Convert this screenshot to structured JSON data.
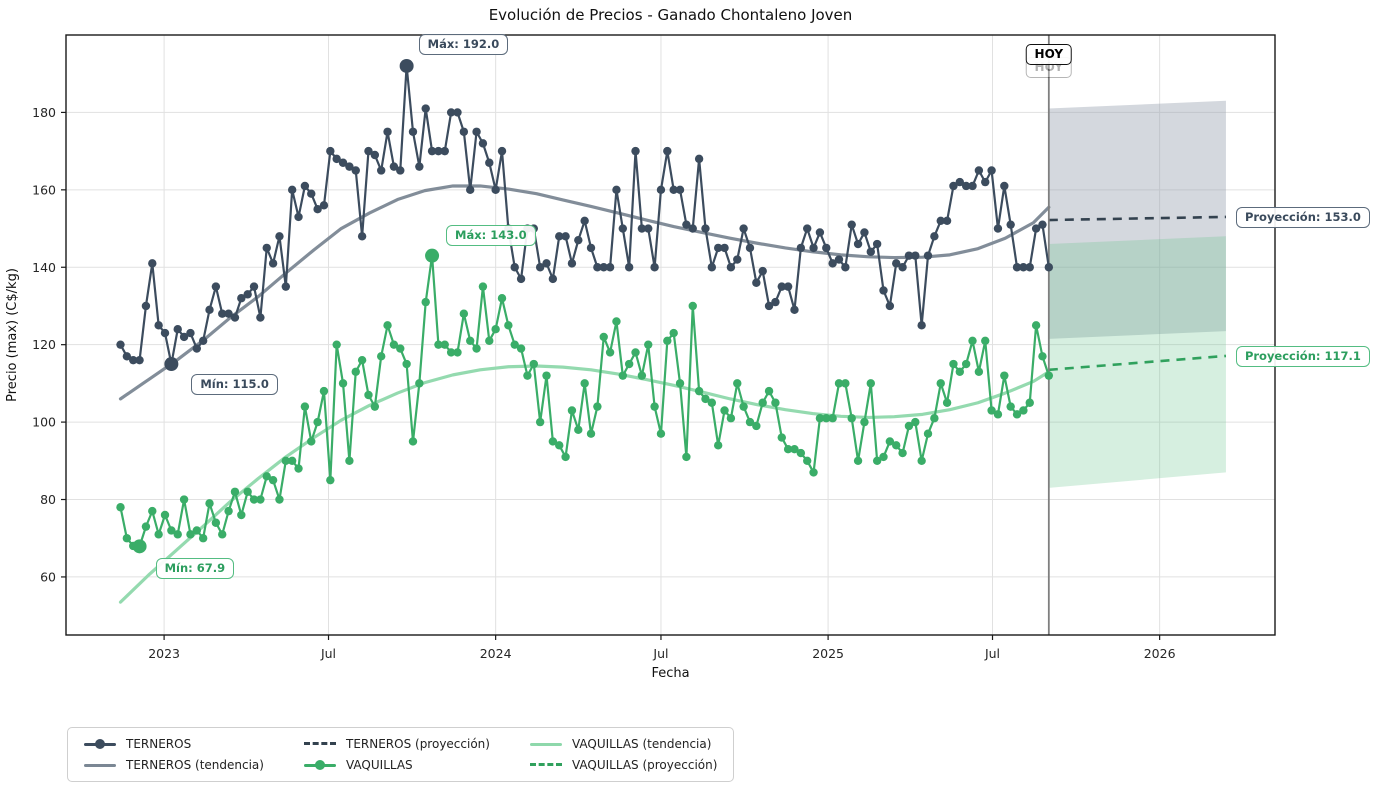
{
  "title": "Evolución de Precios - Ganado Chontaleno Joven",
  "axes": {
    "xlabel": "Fecha",
    "ylabel": "Precio (max) (C$/kg)",
    "yticks": [
      60,
      80,
      100,
      120,
      140,
      160,
      180
    ],
    "xticks": [
      {
        "date": "2023-01-01",
        "label": "2023"
      },
      {
        "date": "2023-07-01",
        "label": "Jul"
      },
      {
        "date": "2024-01-01",
        "label": "2024"
      },
      {
        "date": "2024-07-01",
        "label": "Jul"
      },
      {
        "date": "2025-01-01",
        "label": "2025"
      },
      {
        "date": "2025-07-01",
        "label": "Jul"
      },
      {
        "date": "2026-01-01",
        "label": "2026"
      }
    ]
  },
  "annotations": {
    "terneros_max_label": "Máx: 192.0",
    "terneros_min_label": "Mín: 115.0",
    "vaquillas_max_label": "Máx: 143.0",
    "vaquillas_min_label": "Mín: 67.9",
    "today_label": "HOY",
    "terneros_projection_label": "Proyección: 153.0",
    "vaquillas_projection_label": "Proyección: 117.1"
  },
  "colors": {
    "terneros": "#3c4c5e",
    "terneros_trend": "#7b8794",
    "terneros_projection": "#33424f",
    "terneros_band": "rgba(148,158,172,0.40)",
    "vaquillas": "#3aad68",
    "vaquillas_trend": "#8ed8ab",
    "vaquillas_projection": "#30a15d",
    "vaquillas_band": "rgba(90,190,130,0.25)",
    "today_line": "#7f7f7f",
    "grid": "#e1e1e1",
    "frame": "#1a1a1a"
  },
  "legend": [
    {
      "label": "TERNEROS",
      "type": "marker",
      "color": "#3c4c5e"
    },
    {
      "label": "TERNEROS (tendencia)",
      "type": "line",
      "color": "#7b8794"
    },
    {
      "label": "TERNEROS (proyección)",
      "type": "dash",
      "color": "#33424f"
    },
    {
      "label": "VAQUILLAS",
      "type": "marker",
      "color": "#3aad68"
    },
    {
      "label": "VAQUILLAS (tendencia)",
      "type": "line",
      "color": "#8ed8ab"
    },
    {
      "label": "VAQUILLAS (proyección)",
      "type": "dash",
      "color": "#30a15d"
    }
  ],
  "chart_data": {
    "type": "line",
    "xlim": [
      "2022-09-15",
      "2026-05-08"
    ],
    "ylim": [
      45,
      200
    ],
    "x_start": "2022-11-14",
    "x_step_days": 7,
    "today": "2025-09-01",
    "projection_end": "2026-03-15",
    "series": [
      {
        "name": "TERNEROS",
        "values": [
          120,
          117,
          116,
          116,
          130,
          141,
          125,
          123,
          115,
          124,
          122,
          123,
          119,
          121,
          129,
          135,
          128,
          128,
          127,
          132,
          133,
          135,
          127,
          145,
          141,
          148,
          135,
          160,
          153,
          161,
          159,
          155,
          156,
          170,
          168,
          167,
          166,
          165,
          148,
          170,
          169,
          165,
          175,
          166,
          165,
          192,
          175,
          166,
          181,
          170,
          170,
          170,
          180,
          180,
          175,
          160,
          175,
          172,
          167,
          160,
          170,
          150,
          140,
          137,
          150,
          150,
          140,
          141,
          137,
          148,
          148,
          141,
          147,
          152,
          145,
          140,
          140,
          140,
          160,
          150,
          140,
          170,
          150,
          150,
          140,
          160,
          170,
          160,
          160,
          151,
          150,
          168,
          150,
          140,
          145,
          145,
          140,
          142,
          150,
          145,
          136,
          139,
          130,
          131,
          135,
          135,
          129,
          145,
          150,
          145,
          149,
          145,
          141,
          142,
          140,
          151,
          146,
          149,
          144,
          146,
          134,
          130,
          141,
          140,
          143,
          143,
          125,
          143,
          148,
          152,
          152,
          161,
          162,
          161,
          161,
          165,
          162,
          165,
          150,
          161,
          151,
          140,
          140,
          140,
          150,
          151,
          140
        ],
        "max": {
          "value": 192.0,
          "date": "2023-09-25"
        },
        "min": {
          "value": 115.0,
          "date": "2023-01-09"
        }
      },
      {
        "name": "VAQUILLAS",
        "values": [
          78,
          70,
          68,
          67.9,
          73,
          77,
          71,
          76,
          72,
          71,
          80,
          71,
          72,
          70,
          79,
          74,
          71,
          77,
          82,
          76,
          82,
          80,
          80,
          86,
          85,
          80,
          90,
          90,
          88,
          104,
          95,
          100,
          108,
          85,
          120,
          110,
          90,
          113,
          116,
          107,
          104,
          117,
          125,
          120,
          119,
          115,
          95,
          110,
          131,
          143,
          120,
          120,
          118,
          118,
          128,
          121,
          119,
          135,
          121,
          124,
          132,
          125,
          120,
          119,
          112,
          115,
          100,
          112,
          95,
          94,
          91,
          103,
          98,
          110,
          97,
          104,
          122,
          118,
          126,
          112,
          115,
          118,
          112,
          120,
          104,
          97,
          121,
          123,
          110,
          91,
          130,
          108,
          106,
          105,
          94,
          103,
          101,
          110,
          104,
          100,
          99,
          105,
          108,
          105,
          96,
          93,
          93,
          92,
          90,
          87,
          101,
          101,
          101,
          110,
          110,
          101,
          90,
          100,
          110,
          90,
          91,
          95,
          94,
          92,
          99,
          100,
          90,
          97,
          101,
          110,
          105,
          115,
          113,
          115,
          121,
          113,
          121,
          103,
          102,
          112,
          104,
          102,
          103,
          105,
          125,
          117,
          112
        ],
        "max": {
          "value": 143.0,
          "date": "2023-10-23"
        },
        "min": {
          "value": 67.9,
          "date": "2022-12-05"
        }
      }
    ],
    "trends": [
      {
        "name": "TERNEROS (tendencia)",
        "points": [
          [
            "2022-11-14",
            106
          ],
          [
            "2022-12-15",
            111
          ],
          [
            "2023-01-15",
            116
          ],
          [
            "2023-02-15",
            121.5
          ],
          [
            "2023-03-15",
            127
          ],
          [
            "2023-04-15",
            132.5
          ],
          [
            "2023-05-15",
            138.5
          ],
          [
            "2023-06-15",
            144.5
          ],
          [
            "2023-07-15",
            150
          ],
          [
            "2023-08-15",
            154
          ],
          [
            "2023-09-15",
            157.5
          ],
          [
            "2023-10-15",
            159.8
          ],
          [
            "2023-11-15",
            161
          ],
          [
            "2023-12-15",
            161
          ],
          [
            "2024-01-15",
            160.2
          ],
          [
            "2024-02-15",
            159
          ],
          [
            "2024-03-15",
            157.4
          ],
          [
            "2024-04-15",
            155.7
          ],
          [
            "2024-05-15",
            154
          ],
          [
            "2024-06-15",
            152.2
          ],
          [
            "2024-07-15",
            150.5
          ],
          [
            "2024-08-15",
            149
          ],
          [
            "2024-09-15",
            147.5
          ],
          [
            "2024-10-15",
            146.2
          ],
          [
            "2024-11-15",
            145
          ],
          [
            "2024-12-15",
            144
          ],
          [
            "2025-01-15",
            143.2
          ],
          [
            "2025-02-15",
            142.7
          ],
          [
            "2025-03-15",
            142.5
          ],
          [
            "2025-04-15",
            142.6
          ],
          [
            "2025-05-15",
            143.2
          ],
          [
            "2025-06-15",
            144.8
          ],
          [
            "2025-07-15",
            147.5
          ],
          [
            "2025-08-15",
            151.5
          ],
          [
            "2025-09-01",
            155.5
          ]
        ]
      },
      {
        "name": "VAQUILLAS (tendencia)",
        "points": [
          [
            "2022-11-14",
            53.5
          ],
          [
            "2022-12-15",
            60.5
          ],
          [
            "2023-01-15",
            67
          ],
          [
            "2023-02-15",
            73.5
          ],
          [
            "2023-03-15",
            79.5
          ],
          [
            "2023-04-15",
            85.5
          ],
          [
            "2023-05-15",
            91
          ],
          [
            "2023-06-15",
            96
          ],
          [
            "2023-07-15",
            100.5
          ],
          [
            "2023-08-15",
            104.3
          ],
          [
            "2023-09-15",
            107.5
          ],
          [
            "2023-10-15",
            110.2
          ],
          [
            "2023-11-15",
            112.2
          ],
          [
            "2023-12-15",
            113.5
          ],
          [
            "2024-01-15",
            114.3
          ],
          [
            "2024-02-15",
            114.5
          ],
          [
            "2024-03-15",
            114.2
          ],
          [
            "2024-04-15",
            113.5
          ],
          [
            "2024-05-15",
            112.4
          ],
          [
            "2024-06-15",
            111
          ],
          [
            "2024-07-15",
            109.5
          ],
          [
            "2024-08-15",
            107.8
          ],
          [
            "2024-09-15",
            106
          ],
          [
            "2024-10-15",
            104.5
          ],
          [
            "2024-11-15",
            103.2
          ],
          [
            "2024-12-15",
            102.2
          ],
          [
            "2025-01-15",
            101.5
          ],
          [
            "2025-02-15",
            101.2
          ],
          [
            "2025-03-15",
            101.4
          ],
          [
            "2025-04-15",
            102
          ],
          [
            "2025-05-15",
            103.2
          ],
          [
            "2025-06-15",
            105
          ],
          [
            "2025-07-15",
            107.5
          ],
          [
            "2025-08-15",
            110.5
          ],
          [
            "2025-09-01",
            113
          ]
        ]
      }
    ],
    "projections": [
      {
        "name": "TERNEROS (proyección)",
        "line": [
          [
            "2025-09-01",
            152.2
          ],
          [
            "2026-03-15",
            153.0
          ]
        ],
        "band_top": [
          [
            "2025-09-01",
            181
          ],
          [
            "2026-03-15",
            183
          ]
        ],
        "band_bottom": [
          [
            "2025-09-01",
            121.5
          ],
          [
            "2026-03-15",
            123.5
          ]
        ],
        "final_value": 153.0
      },
      {
        "name": "VAQUILLAS (proyección)",
        "line": [
          [
            "2025-09-01",
            113.5
          ],
          [
            "2026-03-15",
            117.1
          ]
        ],
        "band_top": [
          [
            "2025-09-01",
            146
          ],
          [
            "2026-03-15",
            148
          ]
        ],
        "band_bottom": [
          [
            "2025-09-01",
            83
          ],
          [
            "2026-03-15",
            87
          ]
        ],
        "final_value": 117.1
      }
    ]
  }
}
